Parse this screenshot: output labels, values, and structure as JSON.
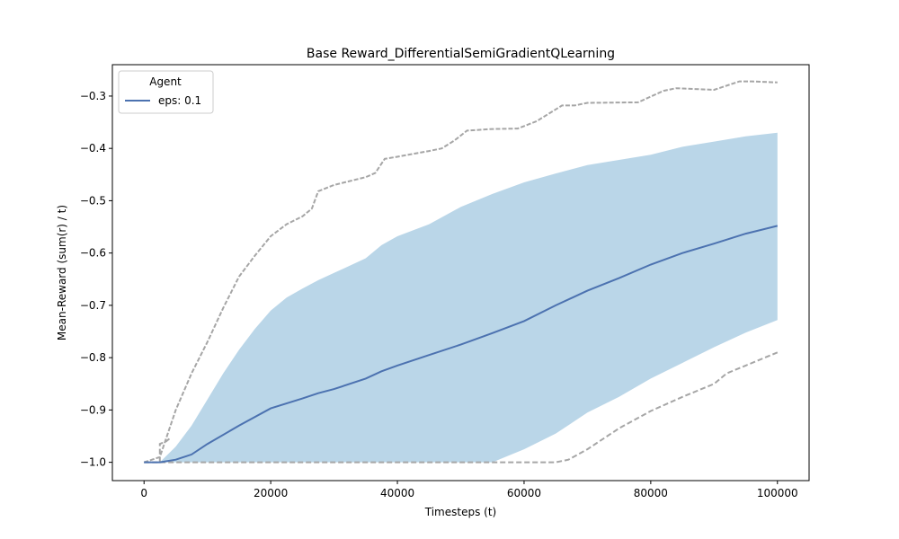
{
  "chart_data": {
    "type": "line",
    "title": "Base Reward_DifferentialSemiGradientQLearning",
    "xlabel": "Timesteps (t)",
    "ylabel": "Mean-Reward (sum(r) / t)",
    "xlim": [
      -5000,
      105000
    ],
    "ylim": [
      -1.035,
      -0.24
    ],
    "xticks": [
      0,
      20000,
      40000,
      60000,
      80000,
      100000
    ],
    "yticks": [
      -1.0,
      -0.9,
      -0.8,
      -0.7,
      -0.6,
      -0.5,
      -0.4,
      -0.3
    ],
    "xtick_labels": [
      "0",
      "20000",
      "40000",
      "60000",
      "80000",
      "100000"
    ],
    "ytick_labels": [
      "−1.0",
      "−0.9",
      "−0.8",
      "−0.7",
      "−0.6",
      "−0.5",
      "−0.4",
      "−0.3"
    ],
    "grid": false,
    "legend": {
      "title": "Agent",
      "placement": "top-left",
      "entries": [
        "eps: 0.1"
      ]
    },
    "colors": {
      "mean": "#4c72b0",
      "band": "#bad6e8",
      "extremes": "#a6a6a6"
    },
    "series": [
      {
        "name": "eps: 0.1",
        "x": [
          0,
          2500,
          5000,
          7500,
          10000,
          15000,
          20000,
          25000,
          27500,
          30000,
          35000,
          37500,
          40000,
          45000,
          50000,
          55000,
          60000,
          65000,
          70000,
          75000,
          80000,
          85000,
          90000,
          95000,
          100000
        ],
        "y": [
          -1.0,
          -1.0,
          -0.995,
          -0.985,
          -0.965,
          -0.93,
          -0.897,
          -0.878,
          -0.868,
          -0.86,
          -0.84,
          -0.826,
          -0.815,
          -0.795,
          -0.775,
          -0.753,
          -0.73,
          -0.7,
          -0.672,
          -0.648,
          -0.622,
          -0.6,
          -0.582,
          -0.563,
          -0.548
        ]
      }
    ],
    "band": {
      "x": [
        2500,
        5000,
        7500,
        10000,
        12500,
        15000,
        17500,
        20000,
        22500,
        25000,
        27500,
        30000,
        35000,
        37500,
        40000,
        45000,
        50000,
        55000,
        60000,
        65000,
        70000,
        75000,
        80000,
        85000,
        90000,
        95000,
        100000
      ],
      "upper": [
        -1.0,
        -0.97,
        -0.93,
        -0.88,
        -0.83,
        -0.785,
        -0.745,
        -0.71,
        -0.685,
        -0.668,
        -0.652,
        -0.638,
        -0.61,
        -0.585,
        -0.568,
        -0.545,
        -0.512,
        -0.487,
        -0.465,
        -0.448,
        -0.432,
        -0.422,
        -0.412,
        -0.397,
        -0.387,
        -0.377,
        -0.37
      ],
      "lower": [
        -1.0,
        -1.0,
        -1.0,
        -1.0,
        -1.0,
        -1.0,
        -1.0,
        -1.0,
        -1.0,
        -1.0,
        -1.0,
        -1.0,
        -1.0,
        -1.0,
        -1.0,
        -1.0,
        -1.0,
        -1.0,
        -0.975,
        -0.945,
        -0.905,
        -0.875,
        -0.84,
        -0.81,
        -0.78,
        -0.752,
        -0.728
      ]
    },
    "max_line": {
      "x": [
        0,
        2500,
        5000,
        7500,
        10000,
        12500,
        15000,
        17500,
        20000,
        22500,
        25000,
        26500,
        27500,
        30000,
        35000,
        36500,
        38000,
        40000,
        45000,
        47000,
        49000,
        51000,
        55000,
        59000,
        62000,
        66000,
        68000,
        70000,
        78000,
        82000,
        84000,
        90000,
        94000,
        96000,
        100000
      ],
      "y": [
        -1.0,
        -0.99,
        -0.9,
        -0.83,
        -0.77,
        -0.705,
        -0.645,
        -0.605,
        -0.568,
        -0.545,
        -0.53,
        -0.515,
        -0.482,
        -0.47,
        -0.455,
        -0.447,
        -0.42,
        -0.416,
        -0.405,
        -0.4,
        -0.385,
        -0.366,
        -0.363,
        -0.362,
        -0.348,
        -0.318,
        -0.318,
        -0.313,
        -0.312,
        -0.29,
        -0.285,
        -0.288,
        -0.272,
        -0.272,
        -0.274
      ]
    },
    "min_line": {
      "x": [
        0,
        65000,
        67000,
        70000,
        75000,
        80000,
        85000,
        90000,
        92000,
        95000,
        100000
      ],
      "y": [
        -1.0,
        -1.0,
        -0.995,
        -0.975,
        -0.935,
        -0.902,
        -0.875,
        -0.85,
        -0.83,
        -0.815,
        -0.79
      ]
    },
    "early_spike": {
      "x": [
        2500,
        2500,
        3500,
        4000
      ],
      "y": [
        -1.0,
        -0.965,
        -0.96,
        -0.955
      ]
    }
  }
}
